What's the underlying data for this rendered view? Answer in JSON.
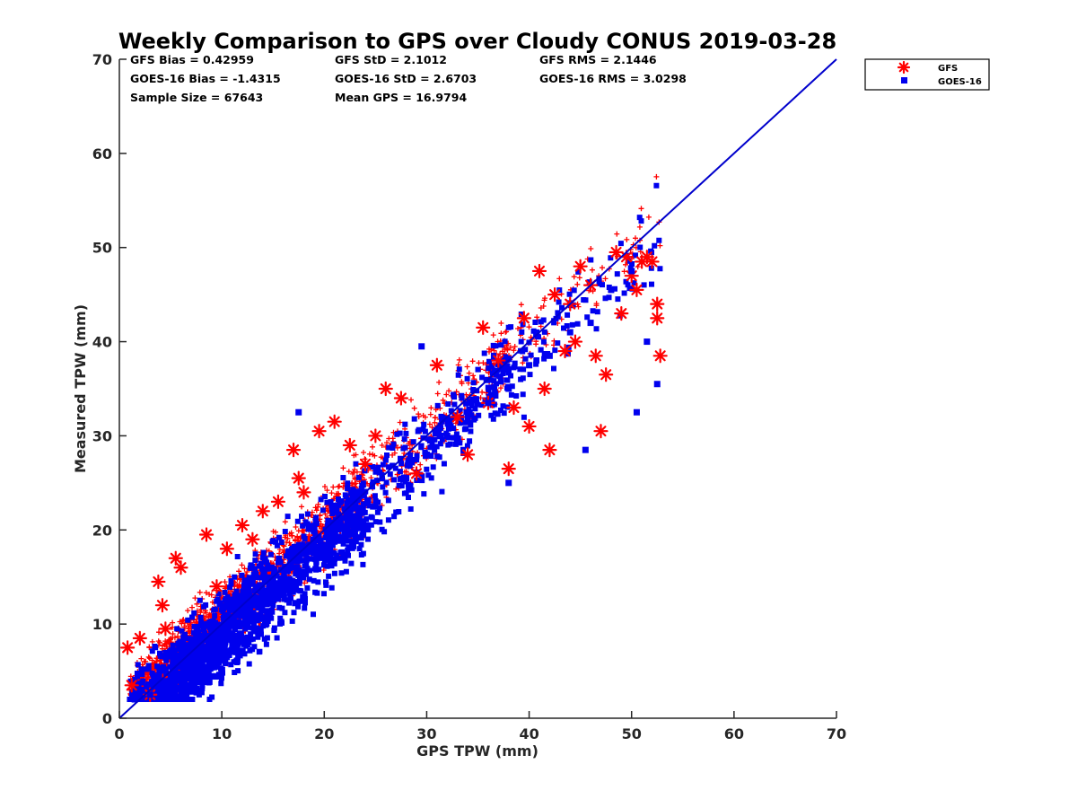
{
  "chart_data": {
    "type": "scatter",
    "title": "Weekly Comparison to GPS over Cloudy CONUS 2019-03-28",
    "xlabel": "GPS TPW (mm)",
    "ylabel": "Measured TPW (mm)",
    "xlim": [
      0,
      70
    ],
    "ylim": [
      0,
      70
    ],
    "xticks": [
      "0",
      "10",
      "20",
      "30",
      "40",
      "50",
      "60",
      "70"
    ],
    "yticks": [
      "0",
      "10",
      "20",
      "30",
      "40",
      "50",
      "60",
      "70"
    ],
    "grid": false,
    "legend_position": "outside top-right",
    "stats": [
      [
        "GFS Bias = 0.42959",
        "GFS StD = 2.1012",
        "GFS RMS = 2.1446"
      ],
      [
        "GOES-16 Bias = -1.4315",
        "GOES-16 StD = 2.6703",
        "GOES-16 RMS = 3.0298"
      ],
      [
        "Sample Size = 67643",
        "Mean GPS = 16.9794"
      ]
    ],
    "reference_line": {
      "x": [
        0,
        70
      ],
      "y": [
        0,
        70
      ],
      "color": "#0000cc"
    },
    "series": [
      {
        "name": "GFS",
        "marker": "asterisk",
        "color": "#ff0000",
        "bias": 0.42959,
        "std": 2.1012,
        "x": [
          0.8,
          1.2,
          2.0,
          3.0,
          3.8,
          4.2,
          4.5,
          5.5,
          6.0,
          8.5,
          9.5,
          10.5,
          12.0,
          13.0,
          14.0,
          15.5,
          17.0,
          17.5,
          18.0,
          19.5,
          21.0,
          22.5,
          24.0,
          25.0,
          26.0,
          27.5,
          29.0,
          31.0,
          33.0,
          34.0,
          35.5,
          37.0,
          38.5,
          39.5,
          41.0,
          41.5,
          42.5,
          43.5,
          44.0,
          45.0,
          46.0,
          46.5,
          47.0,
          47.5,
          48.5,
          49.0,
          49.5,
          50.0,
          50.5,
          51.0,
          51.5,
          52.0,
          52.5,
          52.5,
          52.8,
          44.5,
          42.0,
          40.0,
          38.0,
          36.0
        ],
        "y": [
          7.5,
          3.5,
          8.5,
          2.5,
          14.5,
          12.0,
          9.5,
          17.0,
          16.0,
          19.5,
          14.0,
          18.0,
          20.5,
          19.0,
          22.0,
          23.0,
          28.5,
          25.5,
          24.0,
          30.5,
          31.5,
          29.0,
          27.0,
          30.0,
          35.0,
          34.0,
          26.0,
          37.5,
          32.0,
          28.0,
          41.5,
          38.0,
          33.0,
          42.5,
          47.5,
          35.0,
          45.0,
          39.0,
          44.0,
          48.0,
          46.0,
          38.5,
          30.5,
          36.5,
          49.5,
          43.0,
          49.0,
          47.0,
          45.5,
          48.5,
          49.0,
          48.5,
          44.0,
          42.5,
          38.5,
          40.0,
          28.5,
          31.0,
          26.5,
          33.5
        ]
      },
      {
        "name": "GOES-16",
        "marker": "square",
        "color": "#0000ee",
        "bias": -1.4315,
        "std": 2.6703,
        "x": [
          1.5,
          3.0,
          5.0,
          7.0,
          9.0,
          12.0,
          15.0,
          18.0,
          20.0,
          22.0,
          25.0,
          28.0,
          30.0,
          32.0,
          34.0,
          36.0,
          38.0,
          40.0,
          42.0,
          44.0,
          46.0,
          48.0,
          50.0,
          52.5,
          17.5,
          29.5,
          38.0,
          45.5,
          50.5,
          51.5
        ],
        "y": [
          2.0,
          2.5,
          3.5,
          5.5,
          7.5,
          10.0,
          13.0,
          15.5,
          18.0,
          20.0,
          22.5,
          25.5,
          28.0,
          30.0,
          32.0,
          33.5,
          35.0,
          37.5,
          38.5,
          41.0,
          42.0,
          45.5,
          47.5,
          35.5,
          32.5,
          39.5,
          25.0,
          28.5,
          32.5,
          40.0
        ]
      }
    ]
  }
}
